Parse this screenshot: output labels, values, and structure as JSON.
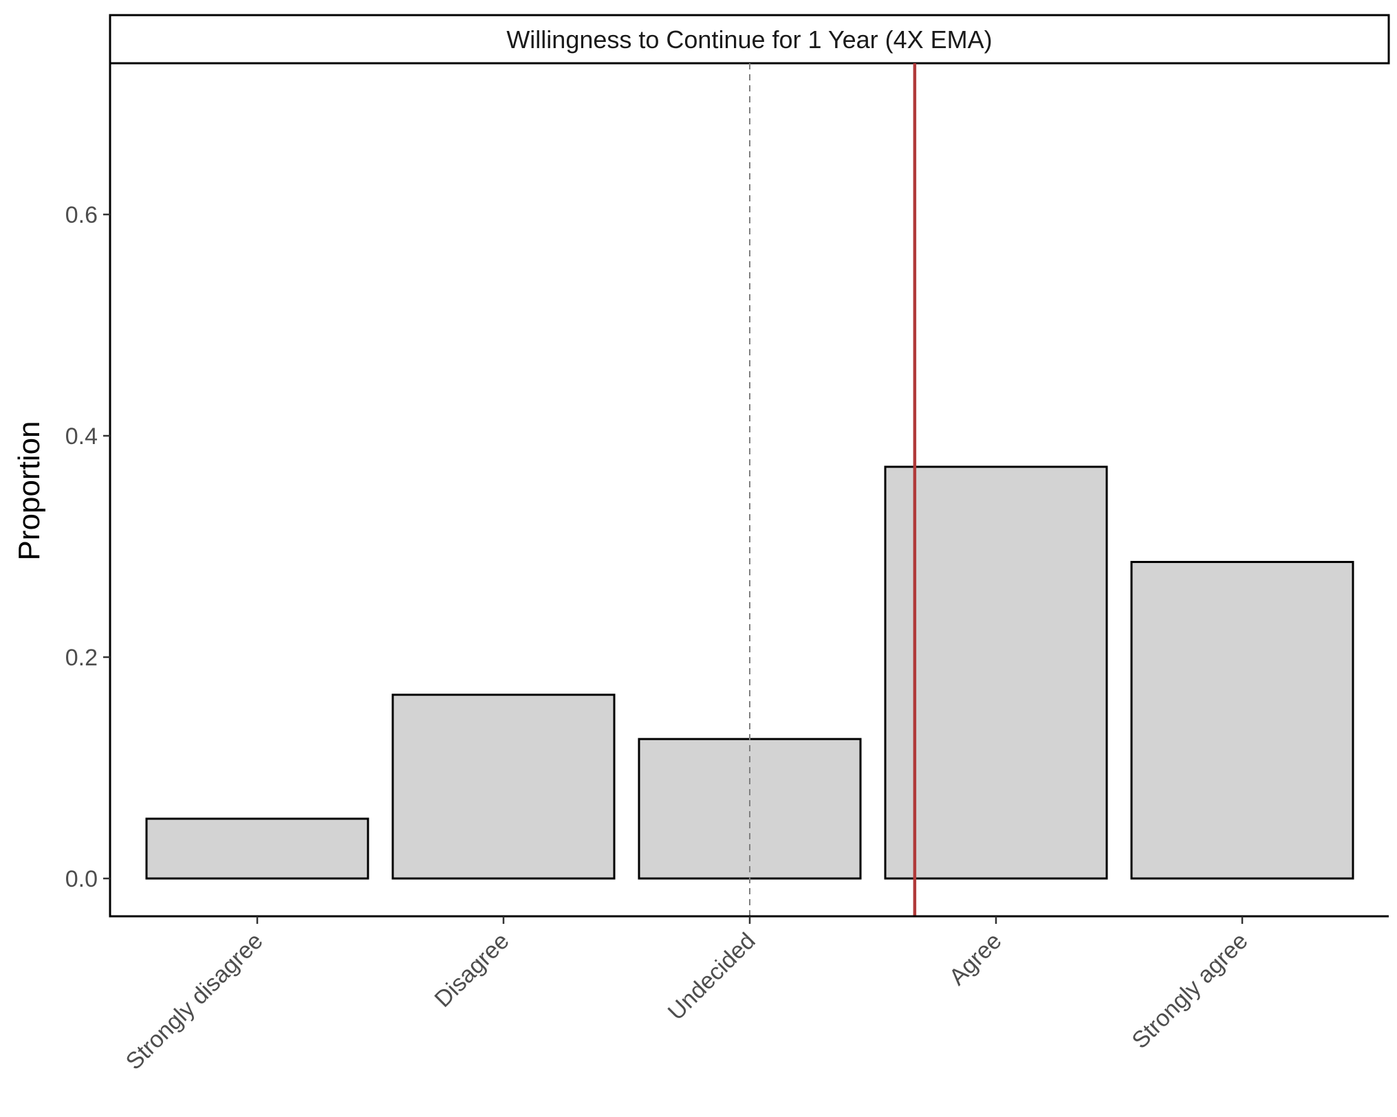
{
  "chart_data": {
    "type": "bar",
    "facet_title": "Willingness to Continue for 1 Year (4X EMA)",
    "ylabel": "Proportion",
    "xlabel": "",
    "categories": [
      "Strongly disagree",
      "Disagree",
      "Undecided",
      "Agree",
      "Strongly agree"
    ],
    "values": [
      0.054,
      0.166,
      0.126,
      0.372,
      0.286
    ],
    "ylim": [
      -0.035,
      0.735
    ],
    "yticks": [
      0.0,
      0.2,
      0.4,
      0.6
    ],
    "ytick_labels": [
      "0.0",
      "0.2",
      "0.4",
      "0.6"
    ],
    "reference_lines": [
      {
        "label": "midpoint",
        "position_index": 3,
        "style": "dashed",
        "color": "#808080"
      },
      {
        "label": "mean",
        "position_index": 3.67,
        "style": "solid",
        "color": "#b03a3a"
      }
    ],
    "bar_fill": "#d3d3d3",
    "bar_outline": "#000000",
    "grid": false,
    "legend": "none"
  }
}
